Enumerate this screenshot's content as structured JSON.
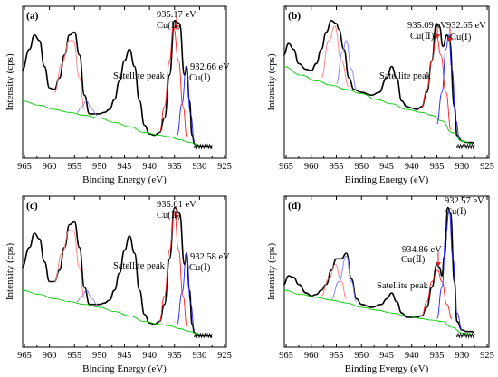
{
  "chart_data": [
    {
      "type": "line",
      "panel_label": "(a)",
      "xlabel": "Binding Energy (eV)",
      "ylabel": "Intensity (cps)",
      "xlim": [
        965,
        925
      ],
      "x_ticks": [
        965,
        960,
        955,
        950,
        945,
        940,
        935,
        930,
        925
      ],
      "grid": false,
      "series": [
        {
          "role": "measured",
          "color": "#000000",
          "x": [
            965.5,
            964,
            963,
            962,
            961,
            960,
            959,
            958,
            957,
            956,
            955,
            954,
            953,
            952,
            951,
            950,
            949,
            948,
            947,
            946,
            945,
            944,
            943,
            942,
            941,
            940,
            939,
            938,
            937,
            936,
            935,
            934,
            933,
            932.6,
            932,
            931.5,
            931,
            930,
            929,
            928,
            927.5
          ],
          "y": [
            0.55,
            0.7,
            0.8,
            0.76,
            0.58,
            0.43,
            0.42,
            0.5,
            0.66,
            0.8,
            0.82,
            0.66,
            0.38,
            0.25,
            0.25,
            0.25,
            0.26,
            0.28,
            0.35,
            0.48,
            0.62,
            0.7,
            0.58,
            0.34,
            0.17,
            0.11,
            0.1,
            0.12,
            0.22,
            0.52,
            0.9,
            0.88,
            0.52,
            0.58,
            0.34,
            0.1,
            0.04,
            0.02,
            0.02,
            0.02,
            0.01
          ]
        },
        {
          "role": "background",
          "color": "#00cc00",
          "x": [
            965.5,
            962,
            959,
            956,
            953,
            950,
            947,
            944,
            941,
            938,
            936,
            934,
            932,
            930,
            928
          ],
          "y": [
            0.34,
            0.31,
            0.28,
            0.26,
            0.24,
            0.22,
            0.19,
            0.16,
            0.12,
            0.1,
            0.09,
            0.07,
            0.05,
            0.03,
            0.02
          ]
        },
        {
          "role": "Cu(II) 2p1/2 fit",
          "color": "#ff8080",
          "x": [
            959,
            957.5,
            956,
            955.2,
            954,
            953
          ],
          "y": [
            0.4,
            0.6,
            0.76,
            0.76,
            0.5,
            0.28
          ]
        },
        {
          "role": "Cu(I) 2p1/2 fit",
          "color": "#8080ff",
          "x": [
            954.5,
            953.5,
            952.6,
            951.5,
            950.5
          ],
          "y": [
            0.26,
            0.3,
            0.34,
            0.28,
            0.24
          ]
        },
        {
          "role": "Cu(II) 2p3/2 fit",
          "color": "#ff2020",
          "x": [
            938,
            937,
            936,
            935.2,
            934.2,
            933.3,
            932.5
          ],
          "y": [
            0.12,
            0.3,
            0.62,
            0.86,
            0.62,
            0.3,
            0.08
          ]
        },
        {
          "role": "Cu(I) 2p3/2 fit",
          "color": "#2020ff",
          "x": [
            934.5,
            933.5,
            932.66,
            931.8,
            931
          ],
          "y": [
            0.1,
            0.32,
            0.58,
            0.25,
            0.06
          ]
        }
      ],
      "annotations": [
        {
          "text": "935.17 eV",
          "x": 935.17,
          "arrow": true
        },
        {
          "text": "Cu(Ⅱ)",
          "x": 935.17
        },
        {
          "text": "932.66 eV",
          "x": 932.66
        },
        {
          "text": "Cu(Ⅰ)",
          "x": 932.66
        },
        {
          "text": "Satellite peak",
          "x": 943.5
        }
      ]
    },
    {
      "type": "line",
      "panel_label": "(b)",
      "xlabel": "Binding Energy (eV)",
      "ylabel": "Intensity (cps)",
      "xlim": [
        965,
        925
      ],
      "x_ticks": [
        965,
        960,
        955,
        950,
        945,
        940,
        935,
        930,
        925
      ],
      "grid": false,
      "series": [
        {
          "role": "measured",
          "color": "#000000",
          "x": [
            965.5,
            964.5,
            963.5,
            962.5,
            961,
            960,
            959,
            958,
            957,
            956,
            955,
            954.5,
            953.5,
            952.5,
            951.5,
            950,
            948,
            946.5,
            945,
            944,
            943,
            942,
            941,
            940,
            939,
            938,
            937,
            936,
            935.1,
            934.5,
            933.8,
            933,
            932.5,
            931.5,
            931,
            930,
            929,
            928,
            927.5
          ],
          "y": [
            0.66,
            0.74,
            0.7,
            0.6,
            0.56,
            0.55,
            0.6,
            0.7,
            0.82,
            0.9,
            0.88,
            0.84,
            0.7,
            0.5,
            0.42,
            0.4,
            0.38,
            0.4,
            0.5,
            0.58,
            0.5,
            0.34,
            0.3,
            0.29,
            0.28,
            0.3,
            0.4,
            0.62,
            0.88,
            0.86,
            0.72,
            0.8,
            0.76,
            0.3,
            0.1,
            0.06,
            0.05,
            0.05,
            0.04
          ]
        },
        {
          "role": "background",
          "color": "#00cc00",
          "x": [
            965.5,
            962,
            959,
            956,
            953,
            950,
            947,
            944,
            941,
            938,
            936,
            934,
            932,
            930,
            928
          ],
          "y": [
            0.58,
            0.52,
            0.48,
            0.45,
            0.42,
            0.39,
            0.35,
            0.32,
            0.28,
            0.26,
            0.24,
            0.2,
            0.12,
            0.06,
            0.04
          ]
        },
        {
          "role": "Cu(II) 2p1/2 fit",
          "color": "#ff8080",
          "x": [
            958,
            956.5,
            955.3,
            954,
            952.5
          ],
          "y": [
            0.5,
            0.76,
            0.86,
            0.62,
            0.44
          ]
        },
        {
          "role": "Cu(I) 2p1/2 fit",
          "color": "#8080ff",
          "x": [
            955,
            953.8,
            953,
            952,
            951
          ],
          "y": [
            0.46,
            0.68,
            0.76,
            0.56,
            0.42
          ]
        },
        {
          "role": "Cu(II) 2p3/2 fit",
          "color": "#ff2020",
          "x": [
            938,
            937,
            936,
            935.09,
            934.2,
            933.2,
            932.2
          ],
          "y": [
            0.3,
            0.42,
            0.62,
            0.8,
            0.66,
            0.4,
            0.14
          ]
        },
        {
          "role": "Cu(I) 2p3/2 fit",
          "color": "#2020ff",
          "x": [
            935,
            934,
            933.2,
            932.65,
            932,
            931.2,
            930.5
          ],
          "y": [
            0.18,
            0.4,
            0.7,
            0.8,
            0.56,
            0.2,
            0.08
          ]
        }
      ],
      "annotations": [
        {
          "text": "935.09 eV",
          "x": 935.09,
          "arrow": true
        },
        {
          "text": "Cu(Ⅱ)",
          "x": 935.09
        },
        {
          "text": "932.65 eV",
          "x": 932.65,
          "arrow": true
        },
        {
          "text": "Cu(Ⅰ)",
          "x": 932.65
        },
        {
          "text": "Satellite peak",
          "x": 944
        }
      ]
    },
    {
      "type": "line",
      "panel_label": "(c)",
      "xlabel": "Binding Energy (eV)",
      "ylabel": "Intensity (cps)",
      "xlim": [
        965,
        925
      ],
      "x_ticks": [
        965,
        960,
        955,
        950,
        945,
        940,
        935,
        930,
        925
      ],
      "grid": false,
      "series": [
        {
          "role": "measured",
          "color": "#000000",
          "x": [
            965.5,
            964,
            963,
            962,
            961,
            960,
            959,
            958,
            957,
            956,
            955,
            954,
            953,
            952,
            951,
            950,
            949,
            948,
            947,
            946,
            945,
            944,
            943,
            942,
            941,
            940,
            939,
            938,
            937,
            936,
            935,
            934,
            933,
            932.6,
            932,
            931.5,
            931,
            930,
            929,
            928,
            927.5
          ],
          "y": [
            0.5,
            0.64,
            0.74,
            0.7,
            0.54,
            0.4,
            0.4,
            0.48,
            0.64,
            0.8,
            0.82,
            0.64,
            0.36,
            0.24,
            0.24,
            0.24,
            0.25,
            0.27,
            0.34,
            0.46,
            0.62,
            0.72,
            0.6,
            0.34,
            0.17,
            0.11,
            0.1,
            0.12,
            0.24,
            0.56,
            0.92,
            0.88,
            0.52,
            0.6,
            0.34,
            0.1,
            0.04,
            0.02,
            0.02,
            0.02,
            0.01
          ]
        },
        {
          "role": "background",
          "color": "#00cc00",
          "x": [
            965.5,
            962,
            959,
            956,
            953,
            950,
            947,
            944,
            941,
            938,
            936,
            934,
            932,
            930,
            928
          ],
          "y": [
            0.34,
            0.31,
            0.28,
            0.26,
            0.24,
            0.22,
            0.19,
            0.16,
            0.12,
            0.1,
            0.09,
            0.07,
            0.05,
            0.03,
            0.02
          ]
        },
        {
          "role": "Cu(II) 2p1/2 fit",
          "color": "#ff8080",
          "x": [
            959,
            957.5,
            956,
            955.2,
            954,
            953
          ],
          "y": [
            0.4,
            0.6,
            0.76,
            0.76,
            0.5,
            0.28
          ]
        },
        {
          "role": "Cu(I) 2p1/2 fit",
          "color": "#8080ff",
          "x": [
            954.5,
            953.5,
            952.6,
            951.5,
            950.5
          ],
          "y": [
            0.26,
            0.3,
            0.34,
            0.28,
            0.24
          ]
        },
        {
          "role": "Cu(II) 2p3/2 fit",
          "color": "#ff2020",
          "x": [
            938,
            937,
            936,
            935.0,
            934.2,
            933.3,
            932.5
          ],
          "y": [
            0.12,
            0.3,
            0.62,
            0.88,
            0.62,
            0.3,
            0.08
          ]
        },
        {
          "role": "Cu(I) 2p3/2 fit",
          "color": "#2020ff",
          "x": [
            934.5,
            933.5,
            932.58,
            931.8,
            931
          ],
          "y": [
            0.1,
            0.32,
            0.6,
            0.25,
            0.06
          ]
        }
      ],
      "annotations": [
        {
          "text": "935.01 eV",
          "x": 935.01,
          "arrow": true
        },
        {
          "text": "Cu(Ⅱ)",
          "x": 935.01
        },
        {
          "text": "932.58 eV",
          "x": 932.58
        },
        {
          "text": "Cu(Ⅰ)",
          "x": 932.58
        },
        {
          "text": "Satellite peak",
          "x": 943.5
        }
      ]
    },
    {
      "type": "line",
      "panel_label": "(d)",
      "xlabel": "Binding Evergy (eV)",
      "ylabel": "Intensity (cps)",
      "xlim": [
        965,
        925
      ],
      "x_ticks": [
        965,
        960,
        955,
        950,
        945,
        940,
        935,
        930,
        925
      ],
      "grid": false,
      "series": [
        {
          "role": "measured",
          "color": "#000000",
          "x": [
            965.5,
            964.5,
            963.5,
            962.5,
            961,
            960,
            959,
            958,
            957,
            956,
            955,
            954,
            953,
            952,
            951,
            950,
            948,
            946,
            945,
            944,
            943,
            942,
            941,
            940,
            939,
            938,
            937,
            936,
            935,
            934.5,
            934,
            933.5,
            932.8,
            932.3,
            931.5,
            931,
            930,
            929,
            928,
            927.5
          ],
          "y": [
            0.38,
            0.44,
            0.43,
            0.38,
            0.32,
            0.3,
            0.31,
            0.34,
            0.38,
            0.48,
            0.56,
            0.56,
            0.6,
            0.42,
            0.28,
            0.24,
            0.22,
            0.24,
            0.28,
            0.32,
            0.26,
            0.18,
            0.15,
            0.15,
            0.15,
            0.16,
            0.22,
            0.36,
            0.52,
            0.5,
            0.44,
            0.58,
            0.92,
            0.88,
            0.4,
            0.12,
            0.06,
            0.05,
            0.05,
            0.04
          ]
        },
        {
          "role": "background",
          "color": "#00cc00",
          "x": [
            965.5,
            962,
            959,
            956,
            953,
            950,
            947,
            944,
            941,
            938,
            936,
            934,
            932,
            930,
            928
          ],
          "y": [
            0.34,
            0.31,
            0.29,
            0.27,
            0.25,
            0.22,
            0.2,
            0.18,
            0.16,
            0.14,
            0.13,
            0.12,
            0.08,
            0.04,
            0.03
          ]
        },
        {
          "role": "Cu(II) 2p1/2 fit",
          "color": "#ff8080",
          "x": [
            958,
            956.5,
            955.2,
            954,
            953
          ],
          "y": [
            0.3,
            0.42,
            0.52,
            0.4,
            0.28
          ]
        },
        {
          "role": "Cu(I) 2p1/2 fit",
          "color": "#8080ff",
          "x": [
            956,
            954.5,
            953,
            952,
            951
          ],
          "y": [
            0.28,
            0.4,
            0.58,
            0.4,
            0.26
          ]
        },
        {
          "role": "Cu(II) 2p3/2 fit",
          "color": "#ff2020",
          "x": [
            938,
            937,
            936,
            934.86,
            934,
            933,
            932
          ],
          "y": [
            0.16,
            0.26,
            0.4,
            0.48,
            0.4,
            0.24,
            0.14
          ]
        },
        {
          "role": "Cu(I) 2p3/2 fit",
          "color": "#2020ff",
          "x": [
            935,
            934,
            933.2,
            932.57,
            931.8,
            931,
            930
          ],
          "y": [
            0.14,
            0.36,
            0.74,
            0.9,
            0.56,
            0.18,
            0.06
          ]
        }
      ],
      "annotations": [
        {
          "text": "932.57 eV",
          "x": 932.57
        },
        {
          "text": "Cu(Ⅰ)",
          "x": 932.57
        },
        {
          "text": "934.86 eV",
          "x": 934.86,
          "arrow": true
        },
        {
          "text": "Cu(Ⅱ)",
          "x": 934.86
        },
        {
          "text": "Satellite peak",
          "x": 944
        }
      ]
    }
  ]
}
